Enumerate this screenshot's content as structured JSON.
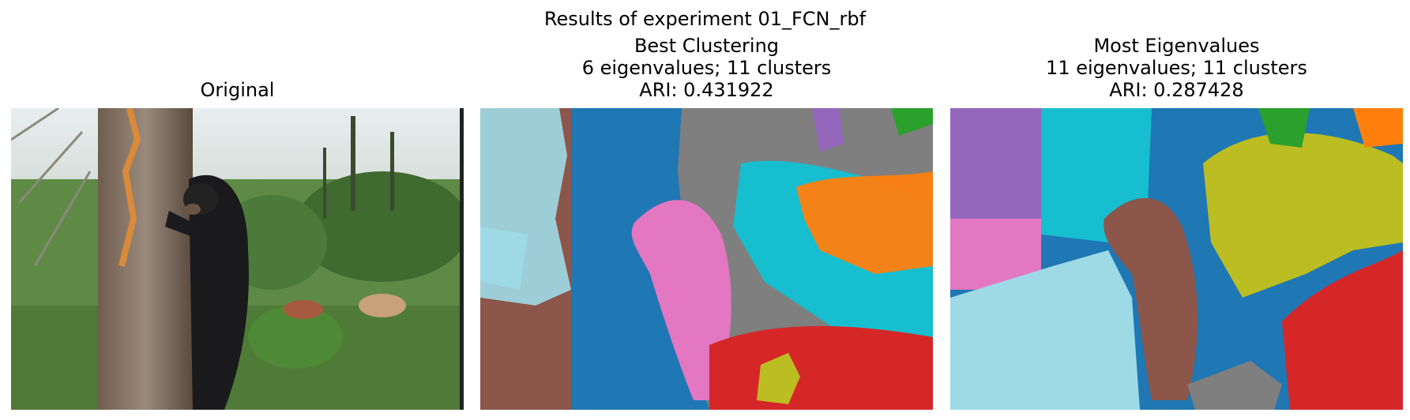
{
  "figure": {
    "suptitle": "Results of experiment 01_FCN_rbf"
  },
  "panels": [
    {
      "title_lines": [
        "Original"
      ],
      "image": "photo-bear-climbing-tree"
    },
    {
      "title_lines": [
        "Best Clustering",
        "6 eigenvalues; 11 clusters",
        "ARI: 0.431922"
      ],
      "image": "segmentation-map"
    },
    {
      "title_lines": [
        "Most Eigenvalues",
        "11 eigenvalues; 11 clusters",
        "ARI: 0.287428"
      ],
      "image": "segmentation-map"
    }
  ],
  "colors": {
    "tab_blue": "#1f77b4",
    "tab_orange": "#ff7f0e",
    "tab_green": "#2ca02c",
    "tab_red": "#d62728",
    "tab_purple": "#9467bd",
    "tab_brown": "#8c564b",
    "tab_pink": "#e377c2",
    "tab_gray": "#7f7f7f",
    "tab_olive": "#bcbd22",
    "tab_cyan": "#17becf",
    "light_cyan": "#9edae5"
  }
}
